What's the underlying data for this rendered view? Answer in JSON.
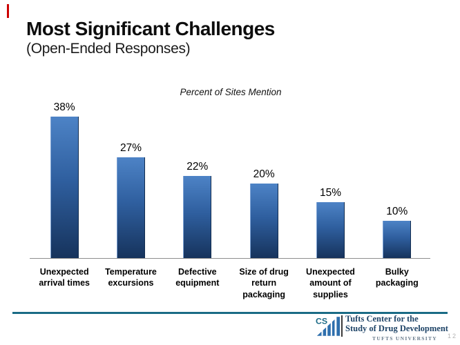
{
  "slide": {
    "title": "Most Significant Challenges",
    "subtitle": "(Open-Ended Responses)",
    "page_number": "12"
  },
  "chart_data": {
    "type": "bar",
    "title": "Percent of Sites Mention",
    "categories": [
      "Unexpected arrival times",
      "Temperature excursions",
      "Defective equipment",
      "Size of drug return packaging",
      "Unexpected amount of supplies",
      "Bulky packaging"
    ],
    "values": [
      38,
      27,
      22,
      20,
      15,
      10
    ],
    "value_labels": [
      "38%",
      "27%",
      "22%",
      "20%",
      "15%",
      "10%"
    ],
    "xlabel": "",
    "ylabel": "",
    "ylim": [
      0,
      40
    ],
    "grid": false,
    "legend": "none",
    "bar_color_top": "#4d83c6",
    "bar_color_mid": "#2f5f9f",
    "bar_color_bottom": "#16335c"
  },
  "footer": {
    "logo_letters": "CS",
    "org_line1": "Tufts Center for the",
    "org_line2": "Study of Drug Development",
    "university": "TUFTS UNIVERSITY"
  },
  "colors": {
    "divider": "#1a6b85",
    "axis": "#8c8c8c",
    "logo_blue": "#2e6fad",
    "logo_teal": "#1b6a86"
  }
}
